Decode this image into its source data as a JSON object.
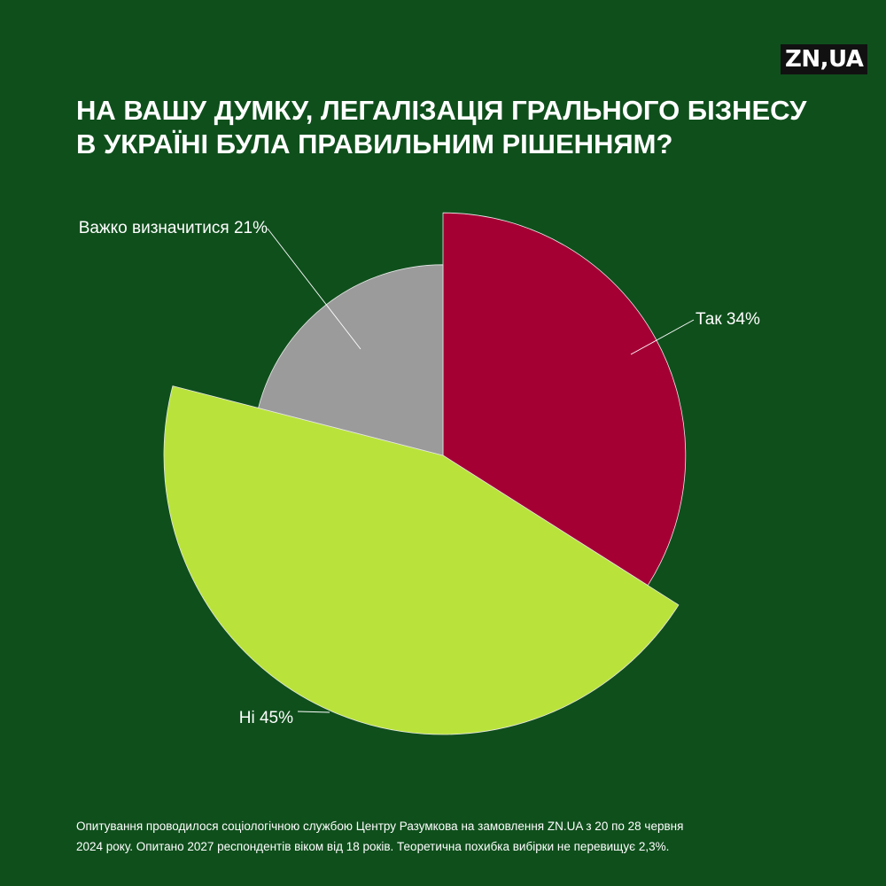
{
  "logo": "ZN,UA",
  "title": {
    "line1": "НА ВАШУ ДУМКУ, ЛЕГАЛІЗАЦІЯ ГРАЛЬНОГО БІЗНЕСУ",
    "line2": "В УКРАЇНІ БУЛА ПРАВИЛЬНИМ РІШЕННЯМ?"
  },
  "footnote": {
    "line1": "Опитування проводилося соціологічною службою Центру Разумкова на замовлення ZN.UA з 20 по 28 червня",
    "line2": "2024 року. Опитано 2027 респондентів віком від 18 років. Теоретична похибка вибірки не перевищує 2,3%."
  },
  "colors": {
    "background": "#0f4f1c",
    "text": "#ffffff"
  },
  "chart_data": {
    "type": "pie",
    "variant": "variable-radius (rose)",
    "title": "НА ВАШУ ДУМКУ, ЛЕГАЛІЗАЦІЯ ГРАЛЬНОГО БІЗНЕСУ В УКРАЇНІ БУЛА ПРАВИЛЬНИМ РІШЕННЯМ?",
    "start_angle": "12 o'clock, clockwise",
    "legend": "none",
    "slices": [
      {
        "label": "Так 34%",
        "value": 34,
        "color": "#a50034"
      },
      {
        "label": "Ні 45%",
        "value": 45,
        "color": "#b9e33a"
      },
      {
        "label": "Важко визначитися 21%",
        "value": 21,
        "color": "#9b9b9b"
      }
    ]
  }
}
